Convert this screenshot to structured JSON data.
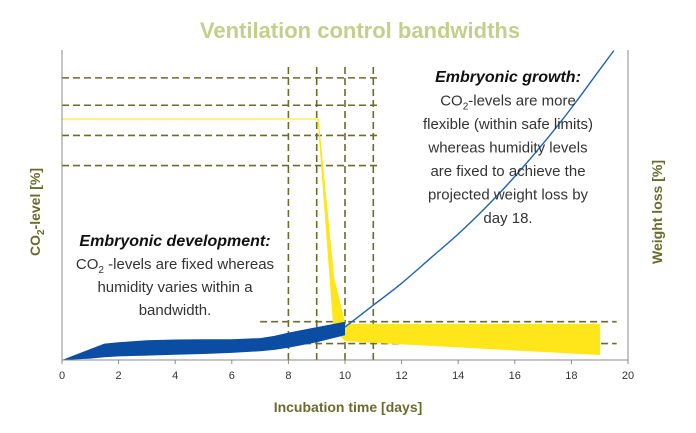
{
  "chart_data": {
    "type": "line",
    "title": "Ventilation control bandwidths",
    "xlabel": "Incubation time [days]",
    "ylabel_left": "CO",
    "ylabel_left_sub": "2",
    "ylabel_left_rest": "-level [%]",
    "ylabel_right": "Weight loss [%]",
    "xlim": [
      0,
      20
    ],
    "x_ticks": [
      "0",
      "2",
      "4",
      "6",
      "8",
      "10",
      "12",
      "14",
      "16",
      "18",
      "20"
    ],
    "colors": {
      "title": "#c3cf8a",
      "axis_label": "#6b6b2e",
      "dashed": "#6b6b2e",
      "co2": "#ffe61a",
      "humidity_band": "#0b4da2",
      "weight_loss": "#1e63b8",
      "axis": "#888888"
    },
    "series": [
      {
        "kind": "co2-level",
        "x": [
          0,
          9,
          9.05,
          9.6,
          10,
          19,
          19
        ],
        "y_upper": [
          88,
          88,
          88,
          30,
          13,
          13,
          13
        ],
        "y_lower": [
          88,
          88,
          88,
          12,
          7,
          2,
          2
        ]
      },
      {
        "kind": "humidity-bandwidth",
        "x": [
          0,
          1,
          1.5,
          2,
          3,
          4,
          5,
          6,
          7,
          7.5,
          8,
          9,
          10
        ],
        "y_upper": [
          0,
          4,
          6,
          6.5,
          7.2,
          7.5,
          7.6,
          7.6,
          8,
          8.8,
          10,
          12,
          14
        ],
        "y_lower": [
          0,
          0.5,
          1,
          1.3,
          1.6,
          1.9,
          2.2,
          2.6,
          3.2,
          3.7,
          4.5,
          6.5,
          9
        ]
      },
      {
        "kind": "weight-loss",
        "x": [
          10,
          11,
          12,
          13,
          14,
          15,
          16,
          17,
          18,
          19,
          19.5
        ],
        "y": [
          12,
          20,
          28,
          37,
          46,
          56,
          67,
          79,
          92,
          106,
          113
        ]
      }
    ],
    "dashed_vertical_x": [
      8,
      9,
      10,
      11
    ],
    "dashed_horizontal_left_y": [
      103,
      93,
      82,
      71
    ],
    "dashed_horizontal_right_y": [
      14,
      6
    ],
    "annotations": [
      {
        "heading": "Embryonic growth:",
        "lines": [
          [
            "CO",
            "2",
            "-levels are more"
          ],
          [
            "flexible (within safe limits)"
          ],
          [
            "whereas humidity levels"
          ],
          [
            "are fixed to achieve the"
          ],
          [
            "projected weight loss by"
          ],
          [
            "day 18."
          ]
        ]
      },
      {
        "heading": "Embryonic development:",
        "lines": [
          [
            "CO",
            "2",
            " -levels are fixed whereas"
          ],
          [
            "humidity varies within a"
          ],
          [
            "bandwidth."
          ]
        ]
      }
    ]
  }
}
